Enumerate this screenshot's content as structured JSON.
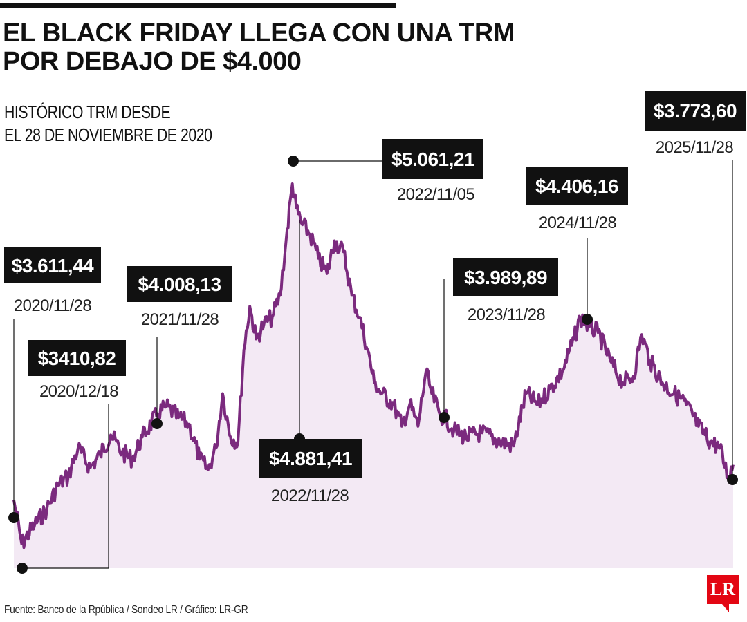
{
  "title": "EL BLACK FRIDAY LLEGA CON UNA TRM POR DEBAJO DE $4.000",
  "subtitle_line1": "HISTÓRICO TRM DESDE",
  "subtitle_line2": "EL 28 DE NOVIEMBRE DE 2020",
  "source": "Fuente: Banco de la Rpública / Sondeo LR / Gráfico: LR-GR",
  "logo": "LR",
  "colors": {
    "line": "#7b2a7e",
    "area": "#f3e9f4",
    "label_bg": "#111111"
  },
  "chart_data": {
    "type": "area",
    "x_start": "2020/11/28",
    "x_end": "2025/11/28",
    "ylim": [
      3300,
      5150
    ],
    "series": [
      {
        "points": [
          [
            "2020/11/28",
            3611.44
          ],
          [
            "2020/12/18",
            3410.82
          ],
          [
            "2021/01/20",
            3500
          ],
          [
            "2021/02/20",
            3570
          ],
          [
            "2021/03/20",
            3680
          ],
          [
            "2021/04/15",
            3720
          ],
          [
            "2021/05/10",
            3850
          ],
          [
            "2021/06/10",
            3760
          ],
          [
            "2021/07/05",
            3820
          ],
          [
            "2021/08/01",
            3910
          ],
          [
            "2021/08/30",
            3830
          ],
          [
            "2021/09/25",
            3800
          ],
          [
            "2021/10/20",
            3900
          ],
          [
            "2021/11/28",
            4008.13
          ],
          [
            "2021/12/20",
            4040
          ],
          [
            "2022/01/20",
            3990
          ],
          [
            "2022/02/15",
            3960
          ],
          [
            "2022/03/15",
            3800
          ],
          [
            "2022/04/05",
            3750
          ],
          [
            "2022/04/25",
            3850
          ],
          [
            "2022/05/12",
            4100
          ],
          [
            "2022/06/01",
            3900
          ],
          [
            "2022/06/20",
            3880
          ],
          [
            "2022/07/05",
            4300
          ],
          [
            "2022/07/20",
            4500
          ],
          [
            "2022/08/05",
            4350
          ],
          [
            "2022/08/25",
            4420
          ],
          [
            "2022/09/15",
            4450
          ],
          [
            "2022/10/05",
            4550
          ],
          [
            "2022/10/20",
            4800
          ],
          [
            "2022/11/05",
            5061.21
          ],
          [
            "2022/11/15",
            4950
          ],
          [
            "2022/11/28",
            4881.41
          ],
          [
            "2022/12/20",
            4830
          ],
          [
            "2023/01/10",
            4720
          ],
          [
            "2023/02/01",
            4650
          ],
          [
            "2023/02/20",
            4800
          ],
          [
            "2023/03/15",
            4750
          ],
          [
            "2023/04/05",
            4550
          ],
          [
            "2023/04/25",
            4450
          ],
          [
            "2023/05/15",
            4300
          ],
          [
            "2023/06/01",
            4150
          ],
          [
            "2023/06/20",
            4100
          ],
          [
            "2023/07/20",
            4050
          ],
          [
            "2023/08/10",
            3950
          ],
          [
            "2023/08/30",
            4050
          ],
          [
            "2023/09/20",
            3950
          ],
          [
            "2023/10/10",
            4200
          ],
          [
            "2023/10/25",
            4100
          ],
          [
            "2023/11/15",
            4000
          ],
          [
            "2023/11/28",
            3989.89
          ],
          [
            "2023/12/20",
            3930
          ],
          [
            "2024/01/20",
            3900
          ],
          [
            "2024/03/01",
            3920
          ],
          [
            "2024/04/15",
            3880
          ],
          [
            "2024/05/20",
            3860
          ],
          [
            "2024/06/20",
            4100
          ],
          [
            "2024/07/20",
            4050
          ],
          [
            "2024/08/20",
            4120
          ],
          [
            "2024/09/20",
            4200
          ],
          [
            "2024/10/20",
            4350
          ],
          [
            "2024/11/05",
            4450
          ],
          [
            "2024/11/28",
            4406.16
          ],
          [
            "2024/12/20",
            4380
          ],
          [
            "2025/01/20",
            4250
          ],
          [
            "2025/02/20",
            4150
          ],
          [
            "2025/03/20",
            4180
          ],
          [
            "2025/04/10",
            4370
          ],
          [
            "2025/05/01",
            4250
          ],
          [
            "2025/06/01",
            4150
          ],
          [
            "2025/07/01",
            4100
          ],
          [
            "2025/08/01",
            4050
          ],
          [
            "2025/09/01",
            3950
          ],
          [
            "2025/10/01",
            3880
          ],
          [
            "2025/10/25",
            3850
          ],
          [
            "2025/11/15",
            3720
          ],
          [
            "2025/11/28",
            3773.6
          ]
        ]
      }
    ],
    "annotations": [
      {
        "value": "$3.611,44",
        "date": "2020/11/28",
        "at": [
          "2020/11/28",
          3611.44
        ]
      },
      {
        "value": "$3410,82",
        "date": "2020/12/18",
        "at": [
          "2020/12/18",
          3410.82
        ]
      },
      {
        "value": "$4.008,13",
        "date": "2021/11/28",
        "at": [
          "2021/11/28",
          4008.13
        ]
      },
      {
        "value": "$5.061,21",
        "date": "2022/11/05",
        "at": [
          "2022/11/05",
          5061.21
        ]
      },
      {
        "value": "$4.881,41",
        "date": "2022/11/28",
        "at": [
          "2022/11/28",
          4881.41
        ]
      },
      {
        "value": "$3.989,89",
        "date": "2023/11/28",
        "at": [
          "2023/11/28",
          3989.89
        ]
      },
      {
        "value": "$4.406,16",
        "date": "2024/11/28",
        "at": [
          "2024/11/28",
          4406.16
        ]
      },
      {
        "value": "$3.773,60",
        "date": "2025/11/28",
        "at": [
          "2025/11/28",
          3773.6
        ]
      }
    ]
  }
}
